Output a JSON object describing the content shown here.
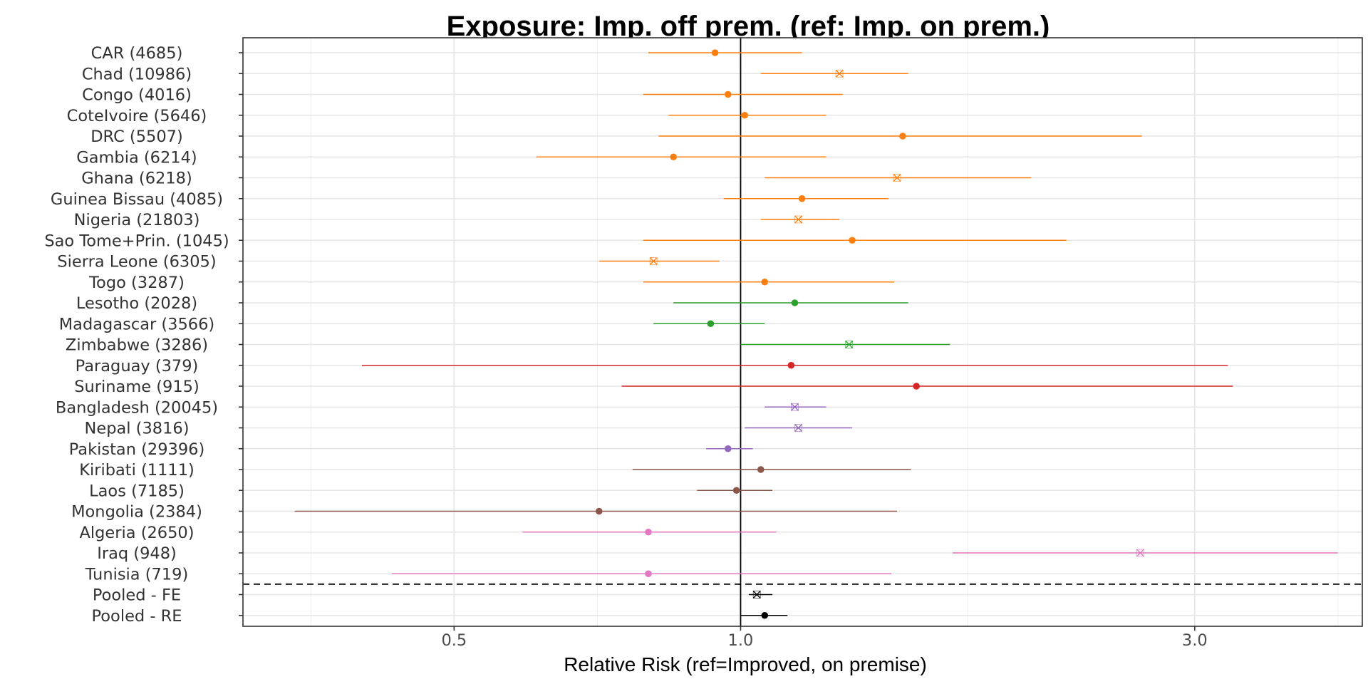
{
  "chart_data": {
    "type": "forest",
    "title": "Exposure: Imp. off prem. (ref: Imp. on prem.)",
    "xlabel": "Relative Risk (ref=Improved, on premise)",
    "ylabel": "",
    "x_scale": "log",
    "xlim": [
      0.3,
      4.5
    ],
    "x_ticks": [
      0.5,
      1.0,
      3.0
    ],
    "x_tick_labels": [
      "0.5",
      "1.0",
      "3.0"
    ],
    "reference_line": 1.0,
    "grid": true,
    "rows": [
      {
        "label": "CAR (4685)",
        "estimate": 0.94,
        "lower": 0.8,
        "upper": 1.16,
        "color": "#ff7f0e",
        "marker": "dot"
      },
      {
        "label": "Chad (10986)",
        "estimate": 1.27,
        "lower": 1.05,
        "upper": 1.5,
        "color": "#ff7f0e",
        "marker": "x"
      },
      {
        "label": "Congo (4016)",
        "estimate": 0.97,
        "lower": 0.79,
        "upper": 1.28,
        "color": "#ff7f0e",
        "marker": "dot"
      },
      {
        "label": "CoteIvoire (5646)",
        "estimate": 1.01,
        "lower": 0.84,
        "upper": 1.23,
        "color": "#ff7f0e",
        "marker": "dot"
      },
      {
        "label": "DRC (5507)",
        "estimate": 1.48,
        "lower": 0.82,
        "upper": 2.64,
        "color": "#ff7f0e",
        "marker": "dot"
      },
      {
        "label": "Gambia (6214)",
        "estimate": 0.85,
        "lower": 0.61,
        "upper": 1.23,
        "color": "#ff7f0e",
        "marker": "dot"
      },
      {
        "label": "Ghana (6218)",
        "estimate": 1.46,
        "lower": 1.06,
        "upper": 2.02,
        "color": "#ff7f0e",
        "marker": "x"
      },
      {
        "label": "Guinea Bissau (4085)",
        "estimate": 1.16,
        "lower": 0.96,
        "upper": 1.43,
        "color": "#ff7f0e",
        "marker": "dot"
      },
      {
        "label": "Nigeria (21803)",
        "estimate": 1.15,
        "lower": 1.05,
        "upper": 1.27,
        "color": "#ff7f0e",
        "marker": "x"
      },
      {
        "label": "Sao Tome+Prin. (1045)",
        "estimate": 1.31,
        "lower": 0.79,
        "upper": 2.2,
        "color": "#ff7f0e",
        "marker": "dot"
      },
      {
        "label": "Sierra Leone (6305)",
        "estimate": 0.81,
        "lower": 0.71,
        "upper": 0.95,
        "color": "#ff7f0e",
        "marker": "x"
      },
      {
        "label": "Togo (3287)",
        "estimate": 1.06,
        "lower": 0.79,
        "upper": 1.45,
        "color": "#ff7f0e",
        "marker": "dot"
      },
      {
        "label": "Lesotho (2028)",
        "estimate": 1.14,
        "lower": 0.85,
        "upper": 1.5,
        "color": "#2ca02c",
        "marker": "dot"
      },
      {
        "label": "Madagascar (3566)",
        "estimate": 0.93,
        "lower": 0.81,
        "upper": 1.06,
        "color": "#2ca02c",
        "marker": "dot"
      },
      {
        "label": "Zimbabwe (3286)",
        "estimate": 1.3,
        "lower": 1.0,
        "upper": 1.66,
        "color": "#2ca02c",
        "marker": "x"
      },
      {
        "label": "Paraguay (379)",
        "estimate": 1.13,
        "lower": 0.4,
        "upper": 3.25,
        "color": "#d62728",
        "marker": "dot"
      },
      {
        "label": "Suriname (915)",
        "estimate": 1.53,
        "lower": 0.75,
        "upper": 3.29,
        "color": "#d62728",
        "marker": "dot"
      },
      {
        "label": "Bangladesh (20045)",
        "estimate": 1.14,
        "lower": 1.06,
        "upper": 1.23,
        "color": "#9467bd",
        "marker": "x"
      },
      {
        "label": "Nepal (3816)",
        "estimate": 1.15,
        "lower": 1.01,
        "upper": 1.31,
        "color": "#9467bd",
        "marker": "x"
      },
      {
        "label": "Pakistan (29396)",
        "estimate": 0.97,
        "lower": 0.92,
        "upper": 1.03,
        "color": "#9467bd",
        "marker": "dot"
      },
      {
        "label": "Kiribati (1111)",
        "estimate": 1.05,
        "lower": 0.77,
        "upper": 1.51,
        "color": "#8c564b",
        "marker": "dot"
      },
      {
        "label": "Laos (7185)",
        "estimate": 0.99,
        "lower": 0.9,
        "upper": 1.08,
        "color": "#8c564b",
        "marker": "dot"
      },
      {
        "label": "Mongolia (2384)",
        "estimate": 0.71,
        "lower": 0.34,
        "upper": 1.46,
        "color": "#8c564b",
        "marker": "dot"
      },
      {
        "label": "Algeria (2650)",
        "estimate": 0.8,
        "lower": 0.59,
        "upper": 1.09,
        "color": "#e377c2",
        "marker": "dot"
      },
      {
        "label": "Iraq (948)",
        "estimate": 2.63,
        "lower": 1.67,
        "upper": 4.24,
        "color": "#e377c2",
        "marker": "x"
      },
      {
        "label": "Tunisia (719)",
        "estimate": 0.8,
        "lower": 0.43,
        "upper": 1.44,
        "color": "#e377c2",
        "marker": "dot"
      },
      {
        "label": "Pooled - FE",
        "estimate": 1.04,
        "lower": 1.02,
        "upper": 1.08,
        "color": "#000000",
        "marker": "x"
      },
      {
        "label": "Pooled - RE",
        "estimate": 1.06,
        "lower": 1.0,
        "upper": 1.12,
        "color": "#000000",
        "marker": "dot"
      }
    ]
  }
}
